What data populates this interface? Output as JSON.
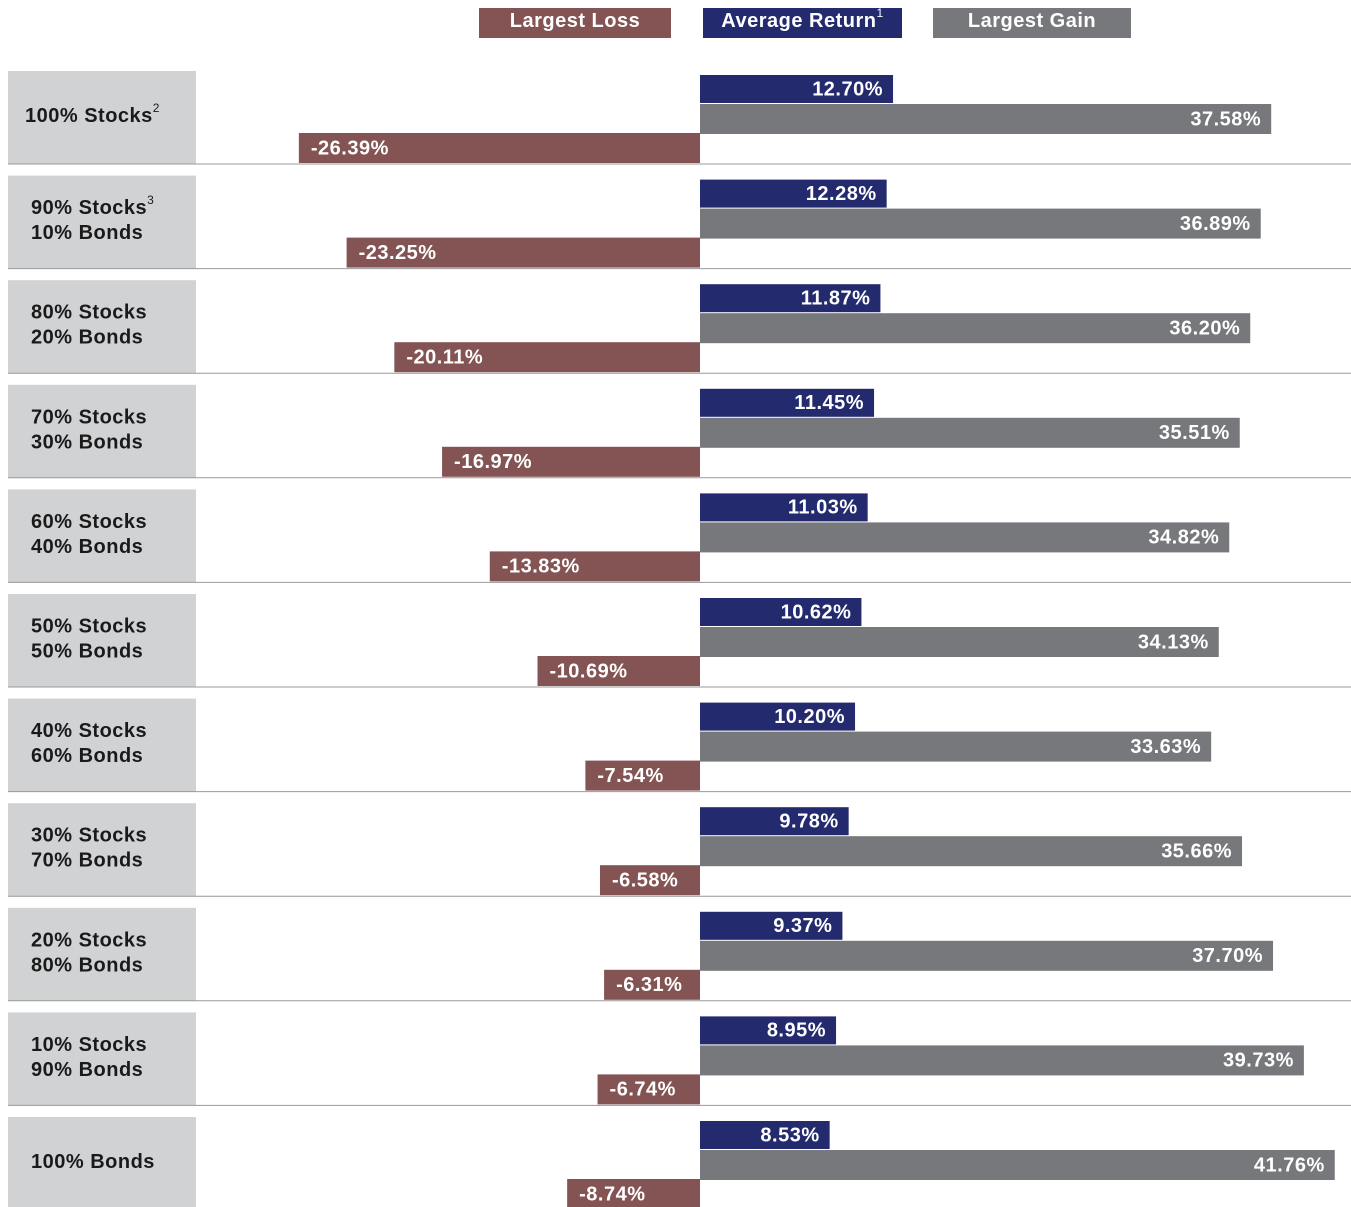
{
  "chart_data": {
    "type": "bar",
    "orientation": "horizontal",
    "categories": [
      [
        "100% Stocks"
      ],
      [
        "90% Stocks",
        "10% Bonds"
      ],
      [
        "80% Stocks",
        "20% Bonds"
      ],
      [
        "70% Stocks",
        "30% Bonds"
      ],
      [
        "60% Stocks",
        "40% Bonds"
      ],
      [
        "50% Stocks",
        "50% Bonds"
      ],
      [
        "40% Stocks",
        "60% Bonds"
      ],
      [
        "30% Stocks",
        "70% Bonds"
      ],
      [
        "20% Stocks",
        "80% Bonds"
      ],
      [
        "10% Stocks",
        "90% Bonds"
      ],
      [
        "100% Bonds"
      ]
    ],
    "category_notes": [
      "2",
      "3",
      null,
      null,
      null,
      null,
      null,
      null,
      null,
      null,
      null
    ],
    "series": [
      {
        "name": "Largest Loss",
        "color": "#845454",
        "values": [
          -26.39,
          -23.25,
          -20.11,
          -16.97,
          -13.83,
          -10.69,
          -7.54,
          -6.58,
          -6.31,
          -6.74,
          -8.74
        ],
        "value_labels": [
          "-26.39%",
          "-23.25%",
          "-20.11%",
          "-16.97%",
          "-13.83%",
          "-10.69%",
          "-7.54%",
          "-6.58%",
          "-6.31%",
          "-6.74%",
          "-8.74%"
        ]
      },
      {
        "name": "Average Return",
        "note": "1",
        "color": "#232a6e",
        "values": [
          12.7,
          12.28,
          11.87,
          11.45,
          11.03,
          10.62,
          10.2,
          9.78,
          9.37,
          8.95,
          8.53
        ],
        "value_labels": [
          "12.70%",
          "12.28%",
          "11.87%",
          "11.45%",
          "11.03%",
          "10.62%",
          "10.20%",
          "9.78%",
          "9.37%",
          "8.95%",
          "8.53%"
        ]
      },
      {
        "name": "Largest Gain",
        "color": "#77787b",
        "values": [
          37.58,
          36.89,
          36.2,
          35.51,
          34.82,
          34.13,
          33.63,
          35.66,
          37.7,
          39.73,
          41.76
        ],
        "value_labels": [
          "37.58%",
          "36.89%",
          "36.20%",
          "35.51%",
          "34.82%",
          "34.13%",
          "33.63%",
          "35.66%",
          "37.70%",
          "39.73%",
          "41.76%"
        ]
      }
    ]
  }
}
